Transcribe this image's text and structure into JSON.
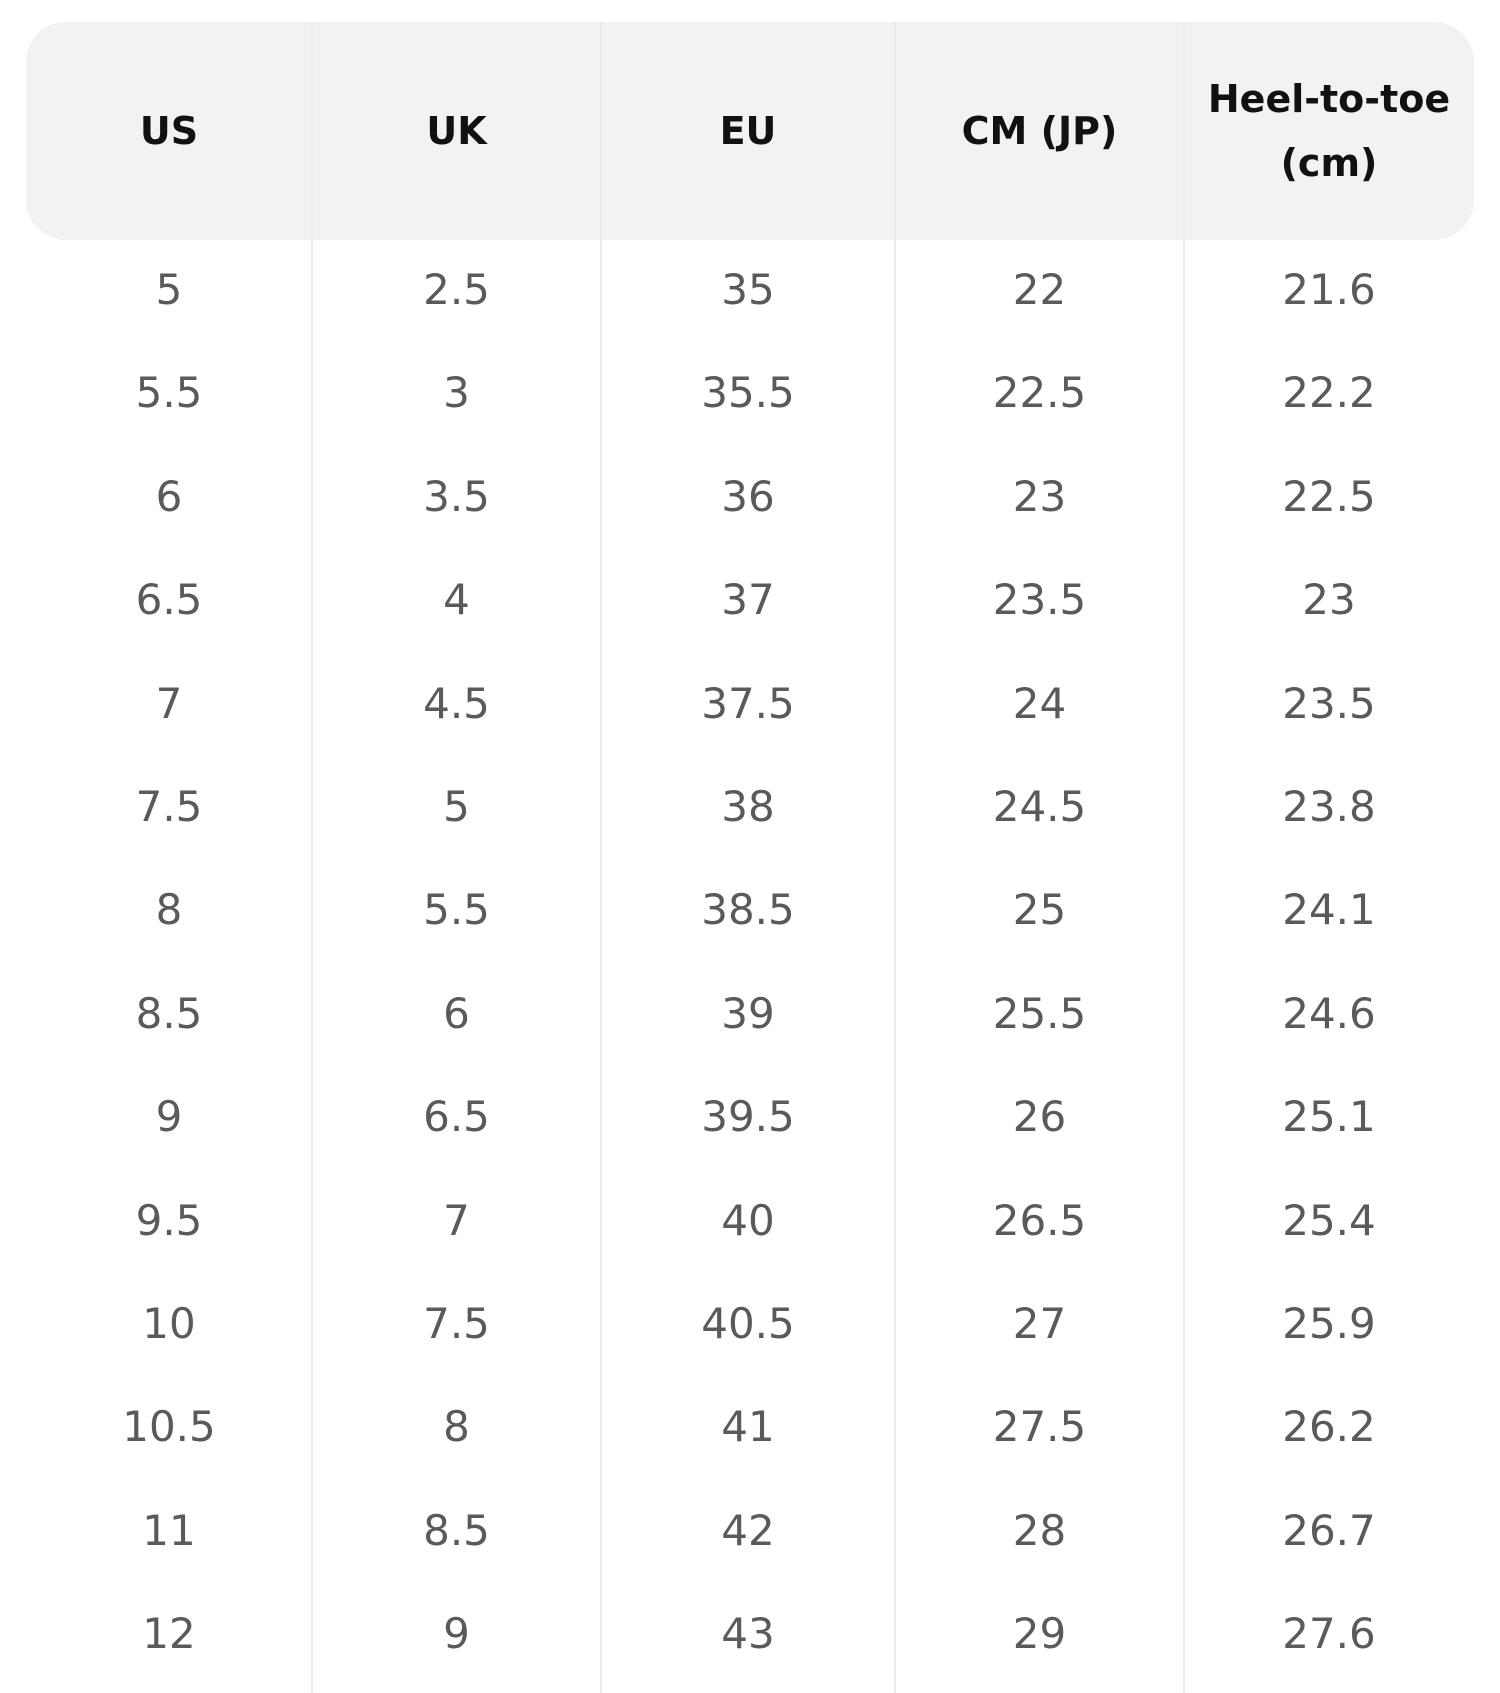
{
  "table": {
    "headers": [
      "US",
      "UK",
      "EU",
      "CM (JP)",
      "Heel-to-toe (cm)"
    ],
    "rows": [
      [
        "5",
        "2.5",
        "35",
        "22",
        "21.6"
      ],
      [
        "5.5",
        "3",
        "35.5",
        "22.5",
        "22.2"
      ],
      [
        "6",
        "3.5",
        "36",
        "23",
        "22.5"
      ],
      [
        "6.5",
        "4",
        "37",
        "23.5",
        "23"
      ],
      [
        "7",
        "4.5",
        "37.5",
        "24",
        "23.5"
      ],
      [
        "7.5",
        "5",
        "38",
        "24.5",
        "23.8"
      ],
      [
        "8",
        "5.5",
        "38.5",
        "25",
        "24.1"
      ],
      [
        "8.5",
        "6",
        "39",
        "25.5",
        "24.6"
      ],
      [
        "9",
        "6.5",
        "39.5",
        "26",
        "25.1"
      ],
      [
        "9.5",
        "7",
        "40",
        "26.5",
        "25.4"
      ],
      [
        "10",
        "7.5",
        "40.5",
        "27",
        "25.9"
      ],
      [
        "10.5",
        "8",
        "41",
        "27.5",
        "26.2"
      ],
      [
        "11",
        "8.5",
        "42",
        "28",
        "26.7"
      ],
      [
        "12",
        "9",
        "43",
        "29",
        "27.6"
      ]
    ]
  }
}
